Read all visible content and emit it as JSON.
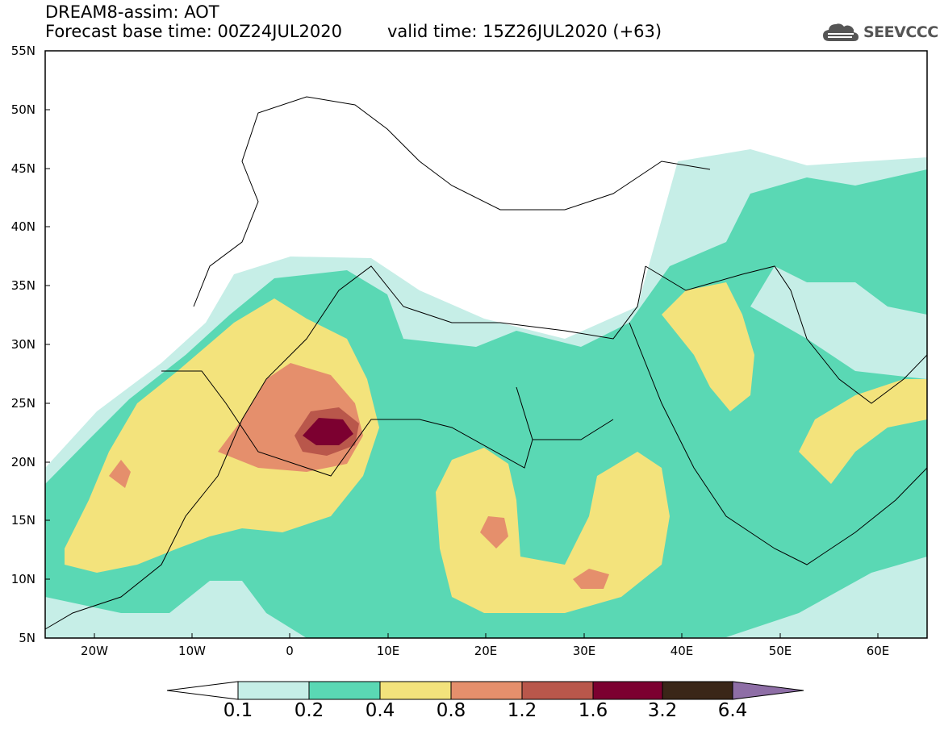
{
  "header": {
    "line1": "DREAM8-assim: AOT",
    "line2": "Forecast base time: 00Z24JUL2020",
    "valid": "valid time: 15Z26JUL2020 (+63)"
  },
  "logo": {
    "text": "SEEVCCC",
    "icon": "cloud-icon"
  },
  "map": {
    "lon_range": [
      -25,
      65
    ],
    "lat_range": [
      5,
      55
    ],
    "y_ticks": [
      "55N",
      "50N",
      "45N",
      "40N",
      "35N",
      "30N",
      "25N",
      "20N",
      "15N",
      "10N",
      "5N"
    ],
    "x_ticks": [
      "20W",
      "10W",
      "0",
      "10E",
      "20E",
      "30E",
      "40E",
      "50E",
      "60E"
    ]
  },
  "colorbar": {
    "labels": [
      "0.1",
      "0.2",
      "0.4",
      "0.8",
      "1.2",
      "1.6",
      "3.2",
      "6.4"
    ],
    "colors": [
      "#c6eee7",
      "#5ad8b4",
      "#f3e37c",
      "#e58f6c",
      "#b9574b",
      "#7c0030",
      "#3a2618",
      "#8e6ea6"
    ]
  },
  "colors": {
    "c1": "#c6eee7",
    "c2": "#5ad8b4",
    "c3": "#f3e37c",
    "c4": "#e58f6c",
    "c5": "#b9574b",
    "c6": "#7c0030"
  }
}
